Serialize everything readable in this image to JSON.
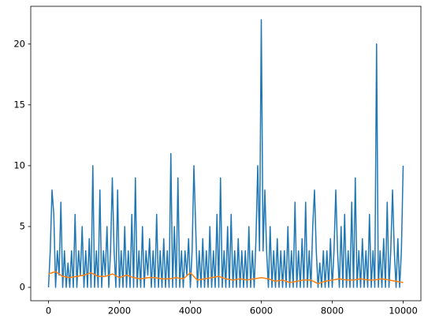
{
  "chart_data": {
    "type": "line",
    "xlim": [
      -500,
      10500
    ],
    "ylim": [
      -1.1,
      23.1
    ],
    "xticks": [
      0,
      2000,
      4000,
      6000,
      8000,
      10000
    ],
    "yticks": [
      0,
      5,
      10,
      15,
      20
    ],
    "grid": false,
    "series": [
      {
        "color": "#1f77b4",
        "x": [
          0,
          50,
          100,
          150,
          200,
          250,
          300,
          350,
          400,
          450,
          500,
          550,
          600,
          650,
          700,
          750,
          800,
          850,
          900,
          950,
          1000,
          1050,
          1100,
          1150,
          1200,
          1250,
          1300,
          1350,
          1400,
          1450,
          1500,
          1550,
          1600,
          1650,
          1700,
          1750,
          1800,
          1850,
          1900,
          1950,
          2000,
          2050,
          2100,
          2150,
          2200,
          2250,
          2300,
          2350,
          2400,
          2450,
          2500,
          2550,
          2600,
          2650,
          2700,
          2750,
          2800,
          2850,
          2900,
          2950,
          3000,
          3050,
          3100,
          3150,
          3200,
          3250,
          3300,
          3350,
          3400,
          3450,
          3500,
          3550,
          3600,
          3650,
          3700,
          3750,
          3800,
          3850,
          3900,
          3950,
          4000,
          4050,
          4100,
          4150,
          4200,
          4250,
          4300,
          4350,
          4400,
          4450,
          4500,
          4550,
          4600,
          4650,
          4700,
          4750,
          4800,
          4850,
          4900,
          4950,
          5000,
          5050,
          5100,
          5150,
          5200,
          5250,
          5300,
          5350,
          5400,
          5450,
          5500,
          5550,
          5600,
          5650,
          5700,
          5750,
          5800,
          5850,
          5900,
          5950,
          6000,
          6050,
          6100,
          6150,
          6200,
          6250,
          6300,
          6350,
          6400,
          6450,
          6500,
          6550,
          6600,
          6650,
          6700,
          6750,
          6800,
          6850,
          6900,
          6950,
          7000,
          7050,
          7100,
          7150,
          7200,
          7250,
          7300,
          7350,
          7400,
          7450,
          7500,
          7550,
          7600,
          7650,
          7700,
          7750,
          7800,
          7850,
          7900,
          7950,
          8000,
          8050,
          8100,
          8150,
          8200,
          8250,
          8300,
          8350,
          8400,
          8450,
          8500,
          8550,
          8600,
          8650,
          8700,
          8750,
          8800,
          8850,
          8900,
          8950,
          9000,
          9050,
          9100,
          9150,
          9200,
          9250,
          9300,
          9350,
          9400,
          9450,
          9500,
          9550,
          9600,
          9650,
          9700,
          9750,
          9800,
          9850,
          9900,
          9950,
          10000
        ],
        "values": [
          0,
          3,
          8,
          6,
          0,
          3,
          1,
          7,
          0,
          3,
          0,
          2,
          0,
          3,
          0,
          6,
          0,
          3,
          1,
          5,
          0,
          3,
          0,
          4,
          0,
          10,
          0,
          3,
          0,
          8,
          0,
          3,
          1,
          5,
          0,
          3,
          9,
          3,
          0,
          8,
          0,
          3,
          0,
          5,
          0,
          3,
          0,
          6,
          0,
          9,
          0,
          3,
          0,
          5,
          0,
          3,
          1,
          4,
          0,
          3,
          0,
          6,
          0,
          3,
          0,
          4,
          0,
          3,
          0,
          11,
          0,
          5,
          0,
          9,
          0,
          3,
          0,
          3,
          1,
          4,
          0,
          3,
          10,
          5,
          0,
          3,
          0,
          4,
          0,
          3,
          0,
          5,
          0,
          3,
          0,
          6,
          0,
          9,
          0,
          3,
          0,
          5,
          0,
          6,
          0,
          3,
          0,
          4,
          0,
          3,
          0,
          3,
          0,
          5,
          0,
          3,
          0,
          4,
          10,
          3,
          22,
          3,
          8,
          3,
          0,
          5,
          0,
          3,
          0,
          4,
          0,
          3,
          0,
          3,
          0,
          5,
          0,
          3,
          0,
          7,
          0,
          3,
          0,
          4,
          0,
          7,
          0,
          3,
          0,
          5,
          8,
          3,
          0,
          2,
          0,
          3,
          0,
          3,
          0,
          4,
          0,
          3,
          8,
          3,
          0,
          5,
          0,
          6,
          0,
          3,
          0,
          7,
          0,
          9,
          0,
          3,
          0,
          4,
          0,
          3,
          0,
          6,
          0,
          3,
          0,
          20,
          0,
          3,
          0,
          4,
          0,
          7,
          0,
          3,
          8,
          3,
          0,
          4,
          0,
          3,
          10
        ]
      },
      {
        "color": "#ff7f0e",
        "x": [
          0,
          200,
          400,
          600,
          800,
          1000,
          1200,
          1400,
          1600,
          1800,
          2000,
          2200,
          2400,
          2600,
          2800,
          3000,
          3200,
          3400,
          3600,
          3800,
          4000,
          4200,
          4400,
          4600,
          4800,
          5000,
          5200,
          5400,
          5600,
          5800,
          6000,
          6200,
          6400,
          6600,
          6800,
          7000,
          7200,
          7400,
          7600,
          7800,
          8000,
          8200,
          8400,
          8600,
          8800,
          9000,
          9200,
          9400,
          9600,
          9800,
          10000
        ],
        "values": [
          1.1,
          1.3,
          0.9,
          0.8,
          0.9,
          1.0,
          1.2,
          0.9,
          0.9,
          1.1,
          0.8,
          1.0,
          0.8,
          0.7,
          0.8,
          0.8,
          0.7,
          0.7,
          0.8,
          0.7,
          1.2,
          0.6,
          0.7,
          0.8,
          0.9,
          0.7,
          0.6,
          0.7,
          0.6,
          0.7,
          0.8,
          0.7,
          0.5,
          0.6,
          0.4,
          0.5,
          0.6,
          0.6,
          0.3,
          0.5,
          0.6,
          0.7,
          0.6,
          0.6,
          0.7,
          0.6,
          0.6,
          0.7,
          0.6,
          0.5,
          0.4
        ]
      }
    ]
  }
}
